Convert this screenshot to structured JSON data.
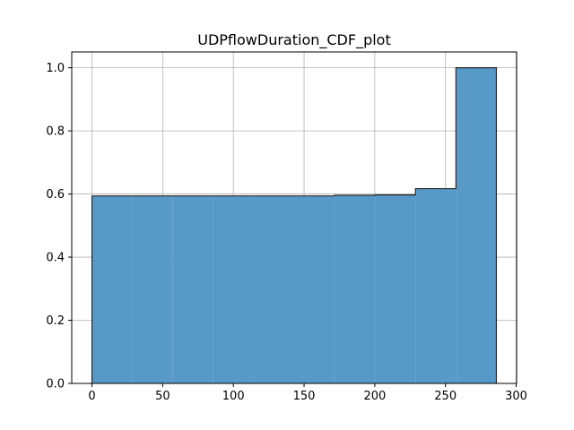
{
  "chart_data": {
    "type": "histogram",
    "title": "UDPflowDuration_CDF_plot",
    "xlabel": "",
    "ylabel": "",
    "xlim": [
      -14.3,
      300.3
    ],
    "ylim": [
      0,
      1.05
    ],
    "xticks": [
      0,
      50,
      100,
      150,
      200,
      250,
      300
    ],
    "yticks": [
      0.0,
      0.2,
      0.4,
      0.6,
      0.8,
      1.0
    ],
    "xtick_labels": [
      "0",
      "50",
      "100",
      "150",
      "200",
      "250",
      "300"
    ],
    "ytick_labels": [
      "0.0",
      "0.2",
      "0.4",
      "0.6",
      "0.8",
      "1.0"
    ],
    "grid": true,
    "cumulative": true,
    "bins": [
      {
        "x0": 0.0,
        "x1": 28.6,
        "y": 0.594
      },
      {
        "x0": 28.6,
        "x1": 57.2,
        "y": 0.594
      },
      {
        "x0": 57.2,
        "x1": 85.8,
        "y": 0.594
      },
      {
        "x0": 85.8,
        "x1": 114.4,
        "y": 0.594
      },
      {
        "x0": 114.4,
        "x1": 143.0,
        "y": 0.594
      },
      {
        "x0": 143.0,
        "x1": 171.6,
        "y": 0.594
      },
      {
        "x0": 171.6,
        "x1": 200.2,
        "y": 0.596
      },
      {
        "x0": 200.2,
        "x1": 228.8,
        "y": 0.597
      },
      {
        "x0": 228.8,
        "x1": 257.4,
        "y": 0.617
      },
      {
        "x0": 257.4,
        "x1": 286.0,
        "y": 1.0
      }
    ],
    "colors": {
      "bar": "#5799c7",
      "edge": "#2a2a2a",
      "grid": "#b0b0b0"
    }
  }
}
